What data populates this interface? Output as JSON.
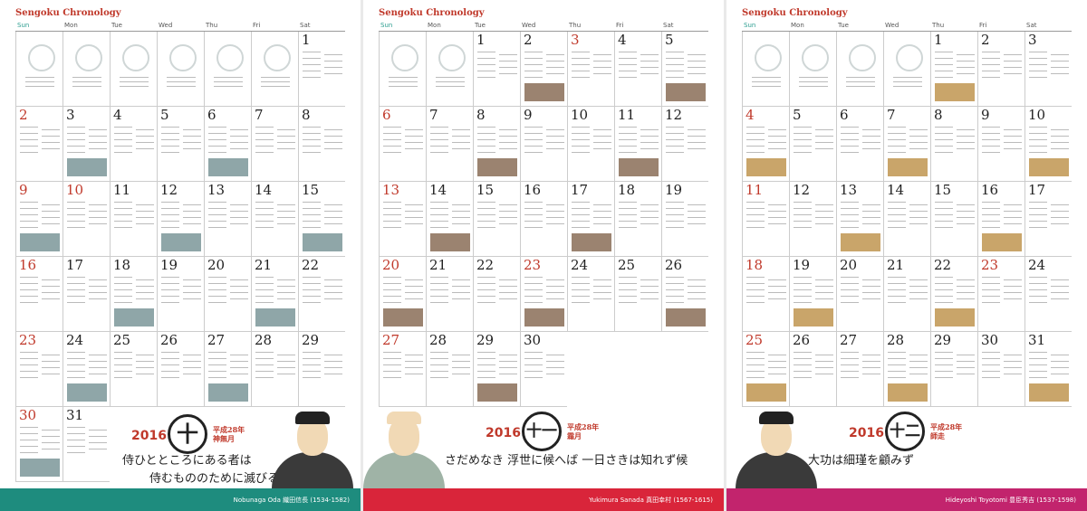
{
  "pages": [
    {
      "title": "Sengoku Chronology",
      "weekdays": [
        "Sun",
        "Mon",
        "Tue",
        "Wed",
        "Thu",
        "Fri",
        "Sat"
      ],
      "days": [
        null,
        null,
        null,
        null,
        null,
        null,
        1,
        2,
        3,
        4,
        5,
        6,
        7,
        8,
        9,
        10,
        11,
        12,
        13,
        14,
        15,
        16,
        17,
        18,
        19,
        20,
        21,
        22,
        23,
        24,
        25,
        26,
        27,
        28,
        29,
        30,
        31
      ],
      "holidays": [
        10
      ],
      "year": "2016",
      "month_kanji": "十",
      "era": "平成28年 神無月",
      "quote": [
        "侍ひとところにある者は",
        "侍むもののために滅びる"
      ],
      "name": "Nobunaga Oda 織田信長 (1534-1582)",
      "band_color": "#1e8c7e"
    },
    {
      "title": "Sengoku Chronology",
      "weekdays": [
        "Sun",
        "Mon",
        "Tue",
        "Wed",
        "Thu",
        "Fri",
        "Sat"
      ],
      "days": [
        null,
        null,
        1,
        2,
        3,
        4,
        5,
        6,
        7,
        8,
        9,
        10,
        11,
        12,
        13,
        14,
        15,
        16,
        17,
        18,
        19,
        20,
        21,
        22,
        23,
        24,
        25,
        26,
        27,
        28,
        29,
        30
      ],
      "holidays": [
        3,
        23
      ],
      "year": "2016",
      "month_kanji": "十一",
      "era": "平成28年 霜月",
      "quote": [
        "さだめなき 浮世に候へば 一日さきは知れず候"
      ],
      "name": "Yukimura Sanada 真田幸村 (1567-1615)",
      "band_color": "#d9253a"
    },
    {
      "title": "Sengoku Chronology",
      "weekdays": [
        "Sun",
        "Mon",
        "Tue",
        "Wed",
        "Thu",
        "Fri",
        "Sat"
      ],
      "days": [
        null,
        null,
        null,
        null,
        1,
        2,
        3,
        4,
        5,
        6,
        7,
        8,
        9,
        10,
        11,
        12,
        13,
        14,
        15,
        16,
        17,
        18,
        19,
        20,
        21,
        22,
        23,
        24,
        25,
        26,
        27,
        28,
        29,
        30,
        31
      ],
      "holidays": [
        23
      ],
      "year": "2016",
      "month_kanji": "十二",
      "era": "平成28年 師走",
      "quote": [
        "大功は細瑾を顧みず"
      ],
      "name": "Hideyoshi Toyotomi 豊臣秀吉 (1537-1598)",
      "band_color": "#c2246d"
    }
  ]
}
